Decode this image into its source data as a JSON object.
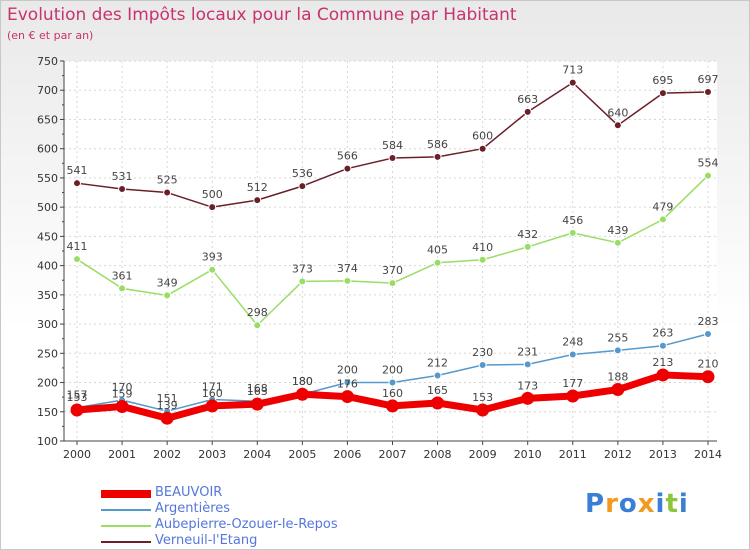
{
  "header": {
    "title": "Evolution des Impôts locaux pour la Commune par Habitant",
    "subtitle": "(en € et par an)"
  },
  "logo": {
    "text": "Proxiti",
    "letters": [
      "P",
      "r",
      "o",
      "x",
      "i",
      "t",
      "i"
    ]
  },
  "chart_data": {
    "type": "line",
    "x": [
      2000,
      2001,
      2002,
      2003,
      2004,
      2005,
      2006,
      2007,
      2008,
      2009,
      2010,
      2011,
      2012,
      2013,
      2014
    ],
    "ylim": [
      100,
      750
    ],
    "yticks": [
      100,
      150,
      200,
      250,
      300,
      350,
      400,
      450,
      500,
      550,
      600,
      650,
      700,
      750
    ],
    "grid": true,
    "legend_position": "bottom-left",
    "series": [
      {
        "name": "Verneuil-l'Étang",
        "color": "#6b1f28",
        "values": [
          541,
          531,
          525,
          500,
          512,
          536,
          566,
          584,
          586,
          600,
          663,
          713,
          640,
          695,
          697
        ]
      },
      {
        "name": "Aubepierre-Ozouer-le-Repos",
        "color": "#99dd66",
        "values": [
          411,
          361,
          349,
          393,
          298,
          373,
          374,
          370,
          405,
          410,
          432,
          456,
          439,
          479,
          554
        ]
      },
      {
        "name": "Argentières",
        "color": "#5599cc",
        "values": [
          157,
          170,
          151,
          171,
          168,
          180,
          200,
          200,
          212,
          230,
          231,
          248,
          255,
          263,
          283
        ]
      },
      {
        "name": "BEAUVOIR",
        "color": "#ee0000",
        "values": [
          153,
          159,
          139,
          160,
          163,
          180,
          176,
          160,
          165,
          153,
          173,
          177,
          188,
          213,
          210
        ]
      }
    ],
    "data_labels": {
      "Verneuil-l'Étang": [
        "541",
        "531",
        "525",
        "500",
        "512",
        "536",
        "566",
        "584",
        "586",
        "600",
        "663",
        "713",
        "640",
        "695",
        "697"
      ],
      "Aubepierre-Ozouer-le-Repos": [
        "411",
        "361",
        "349",
        "393",
        "298",
        "373",
        "374",
        "370",
        "405",
        "410",
        "432",
        "456",
        "439",
        "479",
        "554"
      ],
      "Argentières": [
        "157",
        "170",
        "151",
        "171",
        "168",
        "180",
        "200",
        "200",
        "212",
        "230",
        "231",
        "248",
        "255",
        "263",
        "283"
      ],
      "BEAUVOIR": [
        "153",
        "159",
        "139",
        "160",
        "163",
        "180",
        "176",
        "160",
        "165",
        "153",
        "173",
        "177",
        "188",
        "213",
        "210"
      ]
    }
  },
  "legend": [
    {
      "label": "BEAUVOIR",
      "color": "#ee0000",
      "width": 8
    },
    {
      "label": "Argentières",
      "color": "#5599cc",
      "width": 2
    },
    {
      "label": "Aubepierre-Ozouer-le-Repos",
      "color": "#99dd66",
      "width": 2
    },
    {
      "label": "Verneuil-l'Etang",
      "color": "#6b1f28",
      "width": 2
    }
  ],
  "colors": {
    "title": "#c8326e",
    "legend_text": "#5577dd",
    "axis": "#444444"
  }
}
